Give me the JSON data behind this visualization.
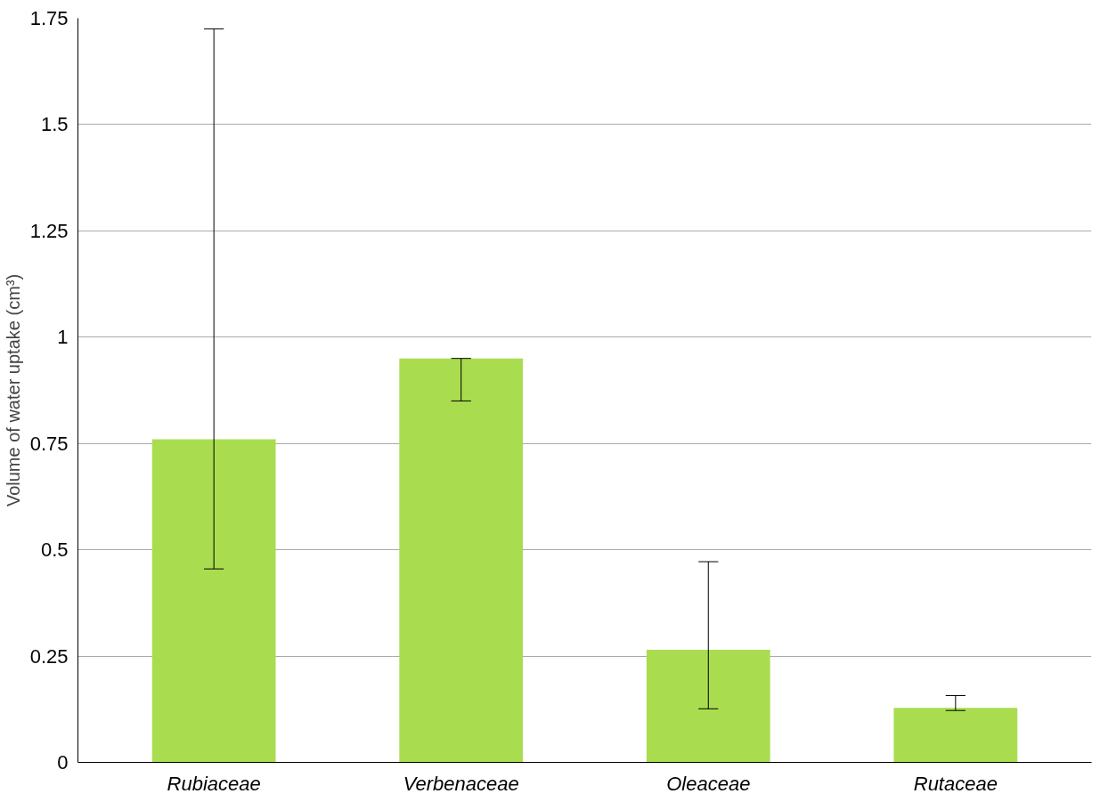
{
  "chart_data": {
    "type": "bar",
    "ylabel": "Volume of water uptake (cm³)",
    "categories": [
      "Rubiaceae",
      "Verbenaceae",
      "Oleaceae",
      "Rutaceae"
    ],
    "values": [
      0.76,
      0.95,
      0.265,
      0.128
    ],
    "errors": [
      [
        0.455,
        1.725
      ],
      [
        0.85,
        0.95
      ],
      [
        0.126,
        0.472
      ],
      [
        0.122,
        0.157
      ]
    ],
    "color": "#a9dd4f",
    "ylim": [
      0,
      1.75
    ],
    "yticks": [
      0,
      0.25,
      0.5,
      0.75,
      1,
      1.25,
      1.5,
      1.75
    ],
    "grid": "y"
  }
}
